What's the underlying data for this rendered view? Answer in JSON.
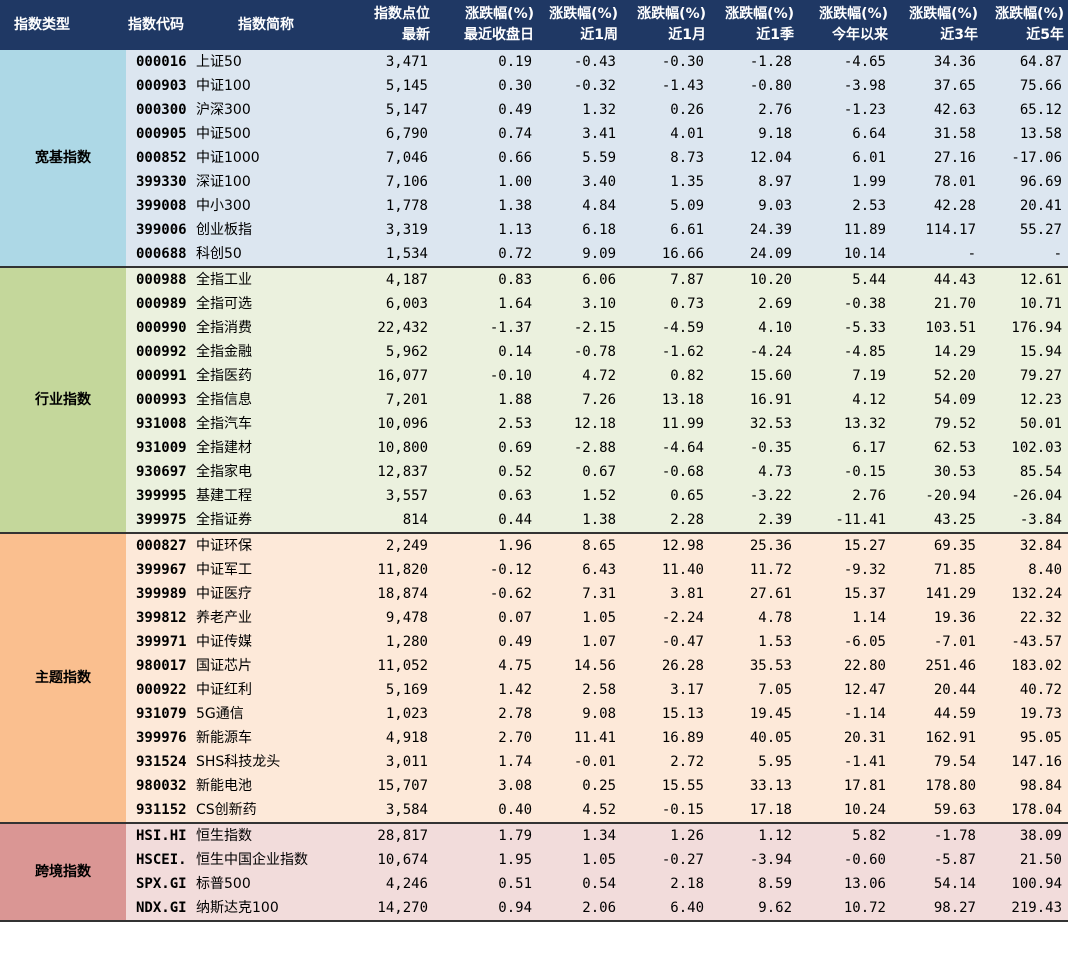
{
  "headers": [
    "指数类型",
    "指数代码",
    "指数简称",
    "指数点位\n最新",
    "涨跌幅(%)\n最近收盘日",
    "涨跌幅(%)\n近1周",
    "涨跌幅(%)\n近1月",
    "涨跌幅(%)\n近1季",
    "涨跌幅(%)\n今年以来",
    "涨跌幅(%)\n近3年",
    "涨跌幅(%)\n近5年"
  ],
  "groups": [
    {
      "category": "宽基指数",
      "rows": [
        [
          "000016",
          "上证50",
          "3,471",
          "0.19",
          "-0.43",
          "-0.30",
          "-1.28",
          "-4.65",
          "34.36",
          "64.87"
        ],
        [
          "000903",
          "中证100",
          "5,145",
          "0.30",
          "-0.32",
          "-1.43",
          "-0.80",
          "-3.98",
          "37.65",
          "75.66"
        ],
        [
          "000300",
          "沪深300",
          "5,147",
          "0.49",
          "1.32",
          "0.26",
          "2.76",
          "-1.23",
          "42.63",
          "65.12"
        ],
        [
          "000905",
          "中证500",
          "6,790",
          "0.74",
          "3.41",
          "4.01",
          "9.18",
          "6.64",
          "31.58",
          "13.58"
        ],
        [
          "000852",
          "中证1000",
          "7,046",
          "0.66",
          "5.59",
          "8.73",
          "12.04",
          "6.01",
          "27.16",
          "-17.06"
        ],
        [
          "399330",
          "深证100",
          "7,106",
          "1.00",
          "3.40",
          "1.35",
          "8.97",
          "1.99",
          "78.01",
          "96.69"
        ],
        [
          "399008",
          "中小300",
          "1,778",
          "1.38",
          "4.84",
          "5.09",
          "9.03",
          "2.53",
          "42.28",
          "20.41"
        ],
        [
          "399006",
          "创业板指",
          "3,319",
          "1.13",
          "6.18",
          "6.61",
          "24.39",
          "11.89",
          "114.17",
          "55.27"
        ],
        [
          "000688",
          "科创50",
          "1,534",
          "0.72",
          "9.09",
          "16.66",
          "24.09",
          "10.14",
          "-",
          "-"
        ]
      ]
    },
    {
      "category": "行业指数",
      "rows": [
        [
          "000988",
          "全指工业",
          "4,187",
          "0.83",
          "6.06",
          "7.87",
          "10.20",
          "5.44",
          "44.43",
          "12.61"
        ],
        [
          "000989",
          "全指可选",
          "6,003",
          "1.64",
          "3.10",
          "0.73",
          "2.69",
          "-0.38",
          "21.70",
          "10.71"
        ],
        [
          "000990",
          "全指消费",
          "22,432",
          "-1.37",
          "-2.15",
          "-4.59",
          "4.10",
          "-5.33",
          "103.51",
          "176.94"
        ],
        [
          "000992",
          "全指金融",
          "5,962",
          "0.14",
          "-0.78",
          "-1.62",
          "-4.24",
          "-4.85",
          "14.29",
          "15.94"
        ],
        [
          "000991",
          "全指医药",
          "16,077",
          "-0.10",
          "4.72",
          "0.82",
          "15.60",
          "7.19",
          "52.20",
          "79.27"
        ],
        [
          "000993",
          "全指信息",
          "7,201",
          "1.88",
          "7.26",
          "13.18",
          "16.91",
          "4.12",
          "54.09",
          "12.23"
        ],
        [
          "931008",
          "全指汽车",
          "10,096",
          "2.53",
          "12.18",
          "11.99",
          "32.53",
          "13.32",
          "79.52",
          "50.01"
        ],
        [
          "931009",
          "全指建材",
          "10,800",
          "0.69",
          "-2.88",
          "-4.64",
          "-0.35",
          "6.17",
          "62.53",
          "102.03"
        ],
        [
          "930697",
          "全指家电",
          "12,837",
          "0.52",
          "0.67",
          "-0.68",
          "4.73",
          "-0.15",
          "30.53",
          "85.54"
        ],
        [
          "399995",
          "基建工程",
          "3,557",
          "0.63",
          "1.52",
          "0.65",
          "-3.22",
          "2.76",
          "-20.94",
          "-26.04"
        ],
        [
          "399975",
          "全指证券",
          "814",
          "0.44",
          "1.38",
          "2.28",
          "2.39",
          "-11.41",
          "43.25",
          "-3.84"
        ]
      ]
    },
    {
      "category": "主题指数",
      "rows": [
        [
          "000827",
          "中证环保",
          "2,249",
          "1.96",
          "8.65",
          "12.98",
          "25.36",
          "15.27",
          "69.35",
          "32.84"
        ],
        [
          "399967",
          "中证军工",
          "11,820",
          "-0.12",
          "6.43",
          "11.40",
          "11.72",
          "-9.32",
          "71.85",
          "8.40"
        ],
        [
          "399989",
          "中证医疗",
          "18,874",
          "-0.62",
          "7.31",
          "3.81",
          "27.61",
          "15.37",
          "141.29",
          "132.24"
        ],
        [
          "399812",
          "养老产业",
          "9,478",
          "0.07",
          "1.05",
          "-2.24",
          "4.78",
          "1.14",
          "19.36",
          "22.32"
        ],
        [
          "399971",
          "中证传媒",
          "1,280",
          "0.49",
          "1.07",
          "-0.47",
          "1.53",
          "-6.05",
          "-7.01",
          "-43.57"
        ],
        [
          "980017",
          "国证芯片",
          "11,052",
          "4.75",
          "14.56",
          "26.28",
          "35.53",
          "22.80",
          "251.46",
          "183.02"
        ],
        [
          "000922",
          "中证红利",
          "5,169",
          "1.42",
          "2.58",
          "3.17",
          "7.05",
          "12.47",
          "20.44",
          "40.72"
        ],
        [
          "931079",
          "5G通信",
          "1,023",
          "2.78",
          "9.08",
          "15.13",
          "19.45",
          "-1.14",
          "44.59",
          "19.73"
        ],
        [
          "399976",
          "新能源车",
          "4,918",
          "2.70",
          "11.41",
          "16.89",
          "40.05",
          "20.31",
          "162.91",
          "95.05"
        ],
        [
          "931524",
          "SHS科技龙头",
          "3,011",
          "1.74",
          "-0.01",
          "2.72",
          "5.95",
          "-1.41",
          "79.54",
          "147.16"
        ],
        [
          "980032",
          "新能电池",
          "15,707",
          "3.08",
          "0.25",
          "15.55",
          "33.13",
          "17.81",
          "178.80",
          "98.84"
        ],
        [
          "931152",
          "CS创新药",
          "3,584",
          "0.40",
          "4.52",
          "-0.15",
          "17.18",
          "10.24",
          "59.63",
          "178.04"
        ]
      ]
    },
    {
      "category": "跨境指数",
      "rows": [
        [
          "HSI.HI",
          "恒生指数",
          "28,817",
          "1.79",
          "1.34",
          "1.26",
          "1.12",
          "5.82",
          "-1.78",
          "38.09"
        ],
        [
          "HSCEI.",
          "恒生中国企业指数",
          "10,674",
          "1.95",
          "1.05",
          "-0.27",
          "-3.94",
          "-0.60",
          "-5.87",
          "21.50"
        ],
        [
          "SPX.GI",
          "标普500",
          "4,246",
          "0.51",
          "0.54",
          "2.18",
          "8.59",
          "13.06",
          "54.14",
          "100.94"
        ],
        [
          "NDX.GI",
          "纳斯达克100",
          "14,270",
          "0.94",
          "2.06",
          "6.40",
          "9.62",
          "10.72",
          "98.27",
          "219.43"
        ]
      ]
    }
  ]
}
